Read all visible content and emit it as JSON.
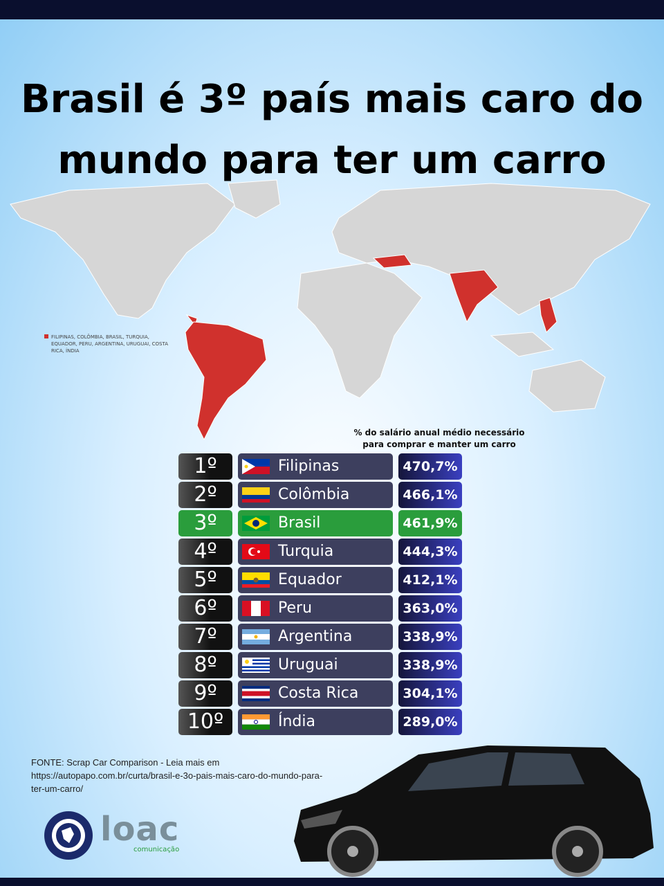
{
  "title_lines": [
    "Brasil é 3º país mais caro do",
    "mundo para ter um carro"
  ],
  "map": {
    "legend": "FILIPINAS, COLÔMBIA, BRASIL, TURQUIA, EQUADOR, PERU, ARGENTINA, URUGUAI, COSTA RICA, ÍNDIA"
  },
  "table": {
    "caption": "% do salário anual médio necessário para comprar e manter um carro",
    "rows": [
      [
        "1º",
        "Filipinas",
        "470,7%"
      ],
      [
        "2º",
        "Colômbia",
        "466,1%"
      ],
      [
        "3º",
        "Brasil",
        "461,9%"
      ],
      [
        "4º",
        "Turquia",
        "444,3%"
      ],
      [
        "5º",
        "Equador",
        "412,1%"
      ],
      [
        "6º",
        "Peru",
        "363,0%"
      ],
      [
        "7º",
        "Argentina",
        "338,9%"
      ],
      [
        "8º",
        "Uruguai",
        "338,9%"
      ],
      [
        "9º",
        "Costa Rica",
        "304,1%"
      ],
      [
        "10º",
        "Índia",
        "289,0%"
      ]
    ]
  },
  "source": "FONTE: Scrap Car Comparison - Leia mais em https://autopapo.com.br/curta/brasil-e-3o-pais-mais-caro-do-mundo-para-ter-um-carro/",
  "logo": {
    "name": "loac",
    "tagline": "comunicação"
  }
}
